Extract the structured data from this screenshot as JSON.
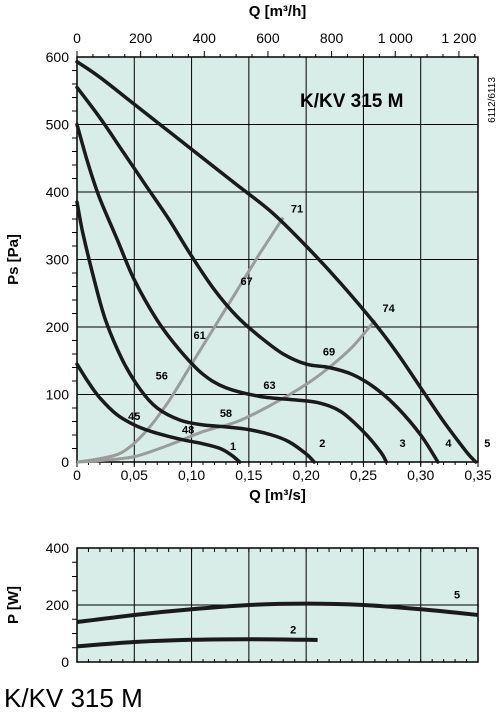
{
  "chart_data": [
    {
      "type": "line",
      "title": "K/KV 315 M",
      "xlabel": "Q [m³/s]",
      "x2label": "Q [m³/h]",
      "ylabel": "Ps [Pa]",
      "xlim": [
        0,
        0.35
      ],
      "ylim": [
        0,
        600
      ],
      "x2lim": [
        0,
        1260
      ],
      "x_ticks": [
        "0",
        "0,05",
        "0,10",
        "0,15",
        "0,20",
        "0,25",
        "0,30",
        "0,35"
      ],
      "x2_ticks": [
        "0",
        "200",
        "400",
        "600",
        "800",
        "1 000",
        "1 200"
      ],
      "y_ticks": [
        "0",
        "100",
        "200",
        "300",
        "400",
        "500",
        "600"
      ],
      "grid": true,
      "side_code": "6112/6113",
      "series": [
        {
          "name": "1",
          "points": [
            [
              0,
              145
            ],
            [
              0.01,
              118
            ],
            [
              0.02,
              95
            ],
            [
              0.035,
              70
            ],
            [
              0.05,
              55
            ],
            [
              0.065,
              45
            ],
            [
              0.08,
              38
            ],
            [
              0.095,
              32
            ],
            [
              0.11,
              27
            ],
            [
              0.125,
              20
            ],
            [
              0.135,
              10
            ],
            [
              0.142,
              0
            ]
          ]
        },
        {
          "name": "2",
          "points": [
            [
              0,
              385
            ],
            [
              0.005,
              340
            ],
            [
              0.015,
              270
            ],
            [
              0.025,
              210
            ],
            [
              0.04,
              150
            ],
            [
              0.055,
              108
            ],
            [
              0.07,
              80
            ],
            [
              0.09,
              62
            ],
            [
              0.11,
              55
            ],
            [
              0.13,
              52
            ],
            [
              0.15,
              48
            ],
            [
              0.17,
              40
            ],
            [
              0.185,
              30
            ],
            [
              0.2,
              12
            ],
            [
              0.207,
              0
            ]
          ]
        },
        {
          "name": "3",
          "points": [
            [
              0,
              500
            ],
            [
              0.01,
              440
            ],
            [
              0.02,
              390
            ],
            [
              0.035,
              330
            ],
            [
              0.05,
              270
            ],
            [
              0.07,
              210
            ],
            [
              0.09,
              165
            ],
            [
              0.11,
              130
            ],
            [
              0.13,
              110
            ],
            [
              0.16,
              97
            ],
            [
              0.19,
              92
            ],
            [
              0.21,
              88
            ],
            [
              0.23,
              75
            ],
            [
              0.25,
              45
            ],
            [
              0.265,
              15
            ],
            [
              0.27,
              0
            ]
          ]
        },
        {
          "name": "4",
          "points": [
            [
              0,
              555
            ],
            [
              0.02,
              510
            ],
            [
              0.04,
              460
            ],
            [
              0.06,
              410
            ],
            [
              0.08,
              360
            ],
            [
              0.1,
              305
            ],
            [
              0.12,
              255
            ],
            [
              0.14,
              215
            ],
            [
              0.16,
              185
            ],
            [
              0.18,
              160
            ],
            [
              0.2,
              145
            ],
            [
              0.22,
              140
            ],
            [
              0.24,
              130
            ],
            [
              0.26,
              110
            ],
            [
              0.28,
              80
            ],
            [
              0.3,
              40
            ],
            [
              0.315,
              0
            ]
          ]
        },
        {
          "name": "5",
          "points": [
            [
              0,
              593
            ],
            [
              0.02,
              570
            ],
            [
              0.05,
              530
            ],
            [
              0.08,
              490
            ],
            [
              0.11,
              450
            ],
            [
              0.14,
              410
            ],
            [
              0.17,
              370
            ],
            [
              0.2,
              320
            ],
            [
              0.23,
              265
            ],
            [
              0.26,
              205
            ],
            [
              0.28,
              160
            ],
            [
              0.3,
              110
            ],
            [
              0.32,
              60
            ],
            [
              0.34,
              15
            ],
            [
              0.348,
              0
            ]
          ]
        }
      ],
      "system_curves": [
        {
          "labels": [
            "45",
            "56",
            "61",
            "67",
            "71"
          ],
          "points": [
            [
              0,
              0
            ],
            [
              0.02,
              5
            ],
            [
              0.04,
              15
            ],
            [
              0.06,
              45
            ],
            [
              0.08,
              90
            ],
            [
              0.1,
              145
            ],
            [
              0.12,
              200
            ],
            [
              0.14,
              255
            ],
            [
              0.16,
              310
            ],
            [
              0.18,
              362
            ]
          ]
        },
        {
          "labels": [
            "48",
            "58",
            "63",
            "69",
            "74"
          ],
          "points": [
            [
              0,
              0
            ],
            [
              0.02,
              2
            ],
            [
              0.05,
              8
            ],
            [
              0.08,
              25
            ],
            [
              0.11,
              45
            ],
            [
              0.14,
              60
            ],
            [
              0.17,
              85
            ],
            [
              0.2,
              115
            ],
            [
              0.22,
              140
            ],
            [
              0.24,
              170
            ],
            [
              0.26,
              210
            ]
          ]
        }
      ],
      "point_labels": [
        {
          "text": "45",
          "x": 0.05,
          "y": 62
        },
        {
          "text": "56",
          "x": 0.074,
          "y": 122
        },
        {
          "text": "61",
          "x": 0.107,
          "y": 182
        },
        {
          "text": "67",
          "x": 0.148,
          "y": 262
        },
        {
          "text": "71",
          "x": 0.192,
          "y": 370
        },
        {
          "text": "48",
          "x": 0.097,
          "y": 42
        },
        {
          "text": "58",
          "x": 0.13,
          "y": 67
        },
        {
          "text": "63",
          "x": 0.168,
          "y": 108
        },
        {
          "text": "69",
          "x": 0.22,
          "y": 158
        },
        {
          "text": "74",
          "x": 0.272,
          "y": 222
        }
      ]
    },
    {
      "type": "line",
      "ylabel": "P [W]",
      "xlim": [
        0,
        0.35
      ],
      "ylim": [
        0,
        400
      ],
      "y_ticks": [
        "0",
        "200",
        "400"
      ],
      "grid": true,
      "series": [
        {
          "name": "5",
          "points": [
            [
              0,
              140
            ],
            [
              0.05,
              165
            ],
            [
              0.1,
              185
            ],
            [
              0.15,
              200
            ],
            [
              0.2,
              205
            ],
            [
              0.25,
              200
            ],
            [
              0.3,
              185
            ],
            [
              0.35,
              165
            ]
          ]
        },
        {
          "name": "2",
          "points": [
            [
              0,
              55
            ],
            [
              0.05,
              70
            ],
            [
              0.1,
              78
            ],
            [
              0.15,
              80
            ],
            [
              0.2,
              78
            ],
            [
              0.21,
              77
            ]
          ]
        }
      ]
    }
  ],
  "caption": "K/KV 315 M"
}
